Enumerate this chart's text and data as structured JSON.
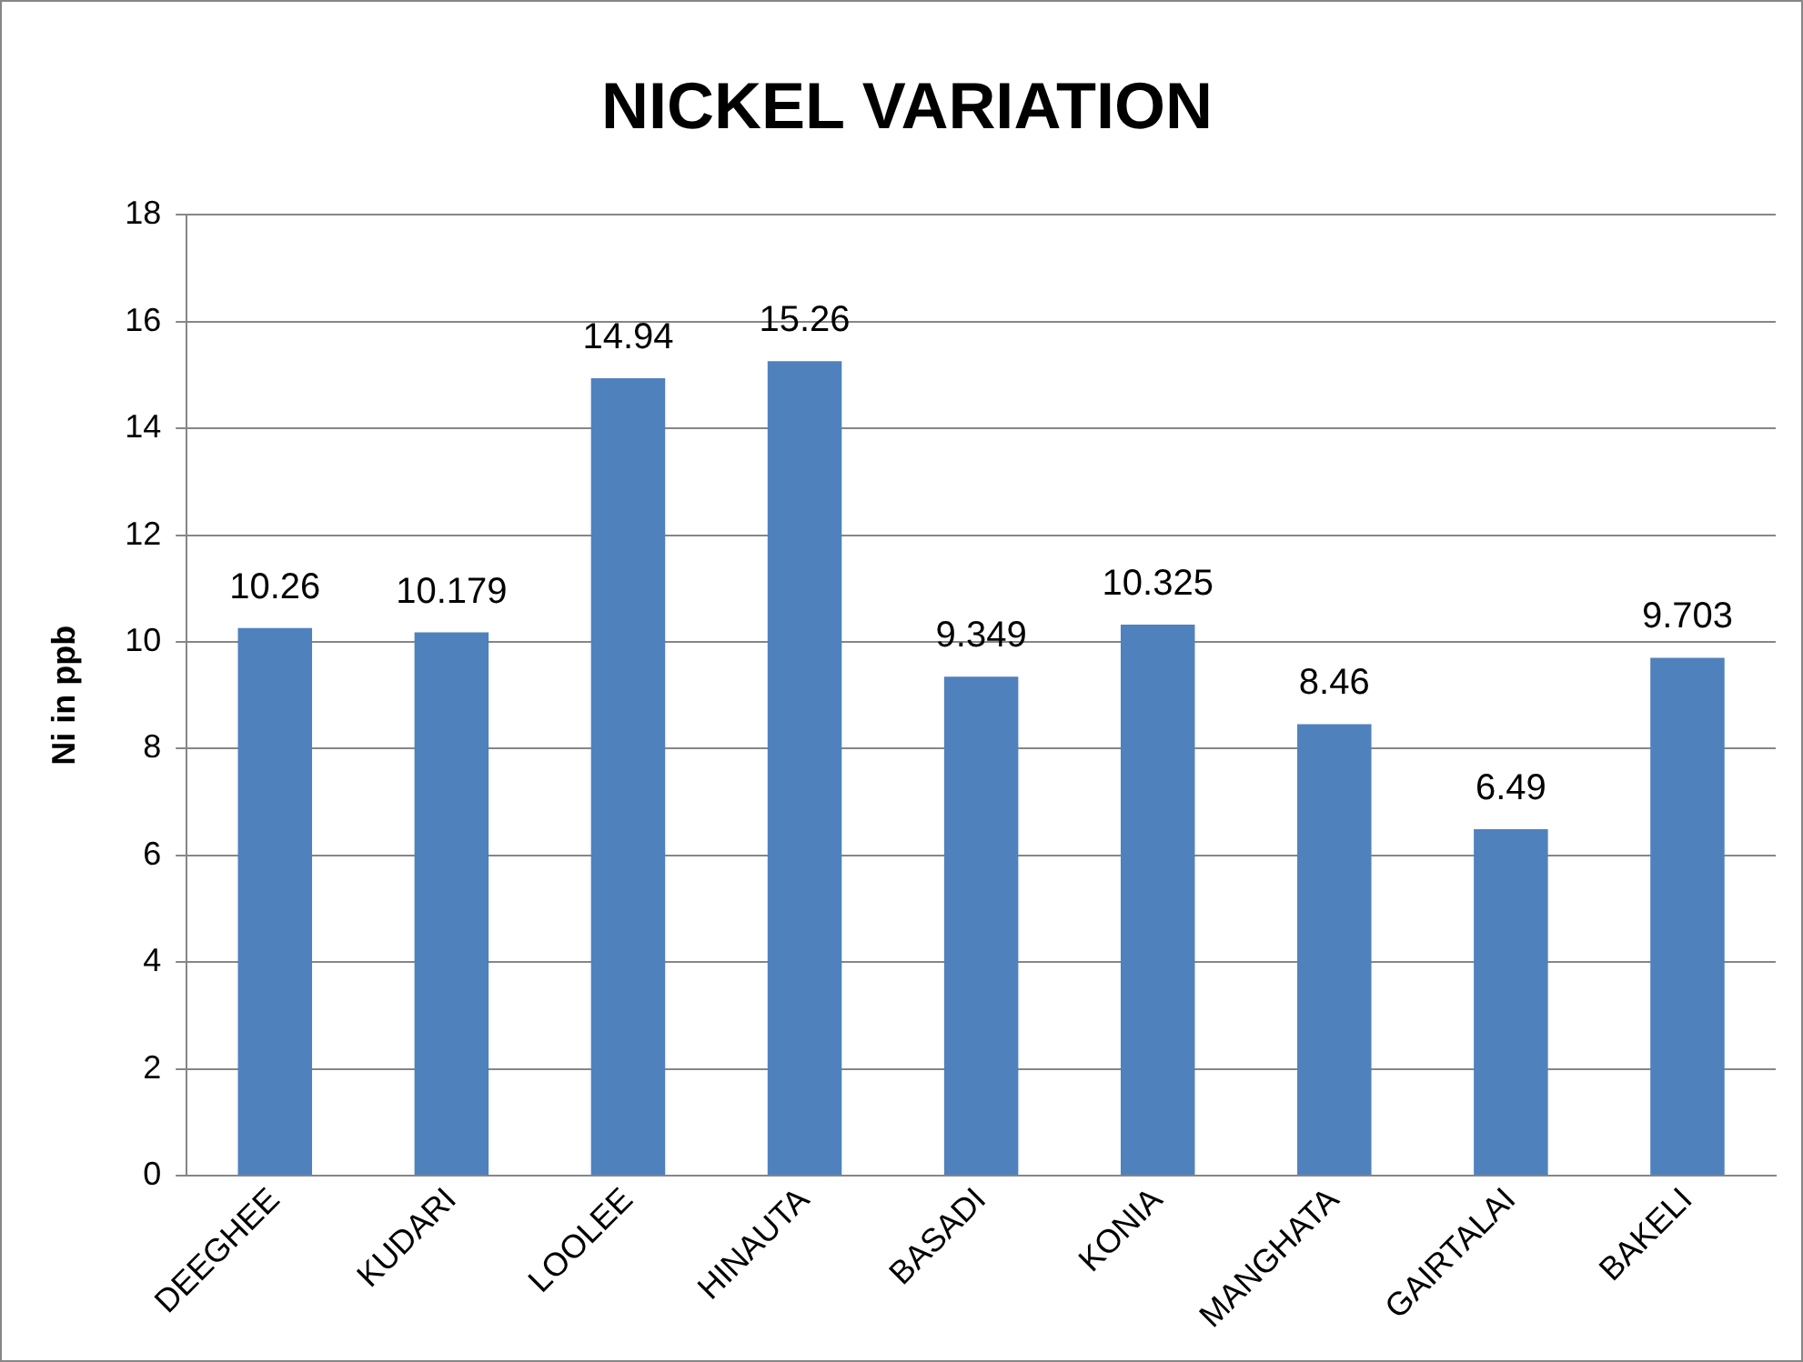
{
  "chart_data": {
    "type": "bar",
    "title": "NICKEL VARIATION",
    "ylabel": "Ni in ppb",
    "categories": [
      "DEEGHEE",
      "KUDARI",
      "LOOLEE",
      "HINAUTA",
      "BASADI",
      "KONIA",
      "MANGHATA",
      "GAIRTALAI",
      "BAKELI"
    ],
    "values": [
      10.26,
      10.179,
      14.94,
      15.26,
      9.349,
      10.325,
      8.46,
      6.49,
      9.703
    ],
    "color": "#4f81bd",
    "ylim": [
      0,
      18
    ],
    "yticks": [
      0,
      2,
      4,
      6,
      8,
      10,
      12,
      14,
      16,
      18
    ],
    "grid": "y",
    "legend": false,
    "data_labels": true
  }
}
